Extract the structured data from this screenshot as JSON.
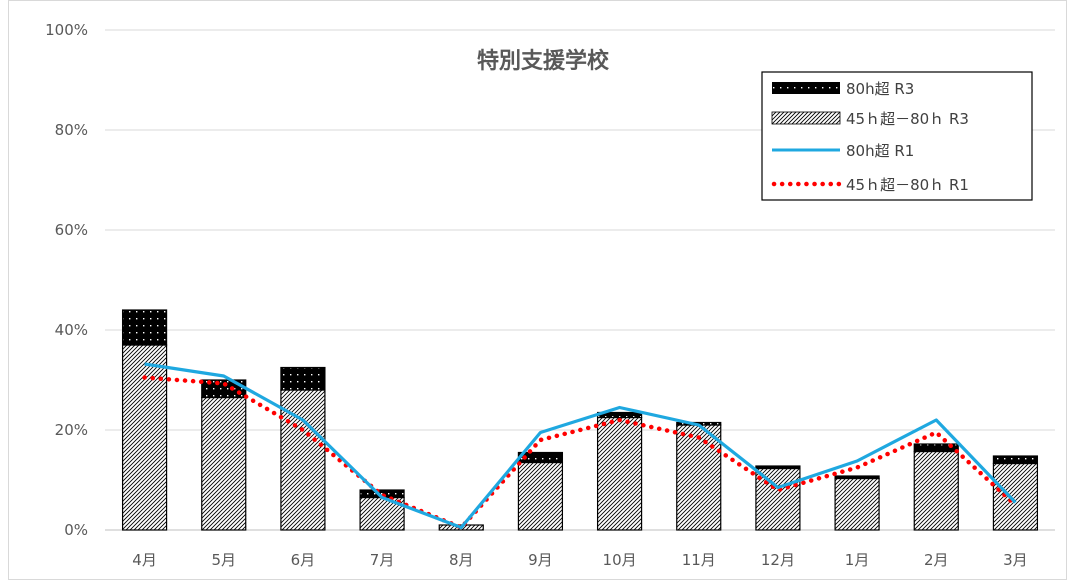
{
  "chart_data": {
    "type": "bar",
    "title": "特別支援学校",
    "categories": [
      "4月",
      "5月",
      "6月",
      "7月",
      "8月",
      "9月",
      "10月",
      "11月",
      "12月",
      "1月",
      "2月",
      "3月"
    ],
    "yticks": [
      "0%",
      "20%",
      "40%",
      "60%",
      "80%",
      "100%"
    ],
    "ylim": [
      0,
      100
    ],
    "grid": true,
    "legend_position": "top-right",
    "series": [
      {
        "name": "80h超 R3",
        "kind": "stacked-bar",
        "pattern": "black-dotted",
        "values": [
          7,
          3.5,
          4.5,
          1.5,
          0,
          2,
          1,
          0.5,
          0.5,
          0.5,
          1.5,
          1.5
        ]
      },
      {
        "name": "45ｈ超－80ｈ R3",
        "kind": "stacked-bar",
        "pattern": "hatched",
        "values": [
          37,
          26.5,
          28,
          6.5,
          1,
          13.5,
          22.5,
          21,
          12.3,
          10.3,
          15.7,
          13.3
        ]
      },
      {
        "name": "80h超 R1",
        "kind": "line",
        "color": "#1fa8e0",
        "values": [
          33.2,
          30.8,
          22,
          6.5,
          0.5,
          19.5,
          24.5,
          21,
          8.5,
          13.8,
          22,
          5.5
        ]
      },
      {
        "name": "45ｈ超－80ｈ R1",
        "kind": "dotted-line",
        "color": "#ff0000",
        "values": [
          30.5,
          29.3,
          20,
          7,
          0.5,
          18,
          22,
          18.5,
          8,
          12.5,
          19.5,
          5
        ]
      }
    ]
  }
}
